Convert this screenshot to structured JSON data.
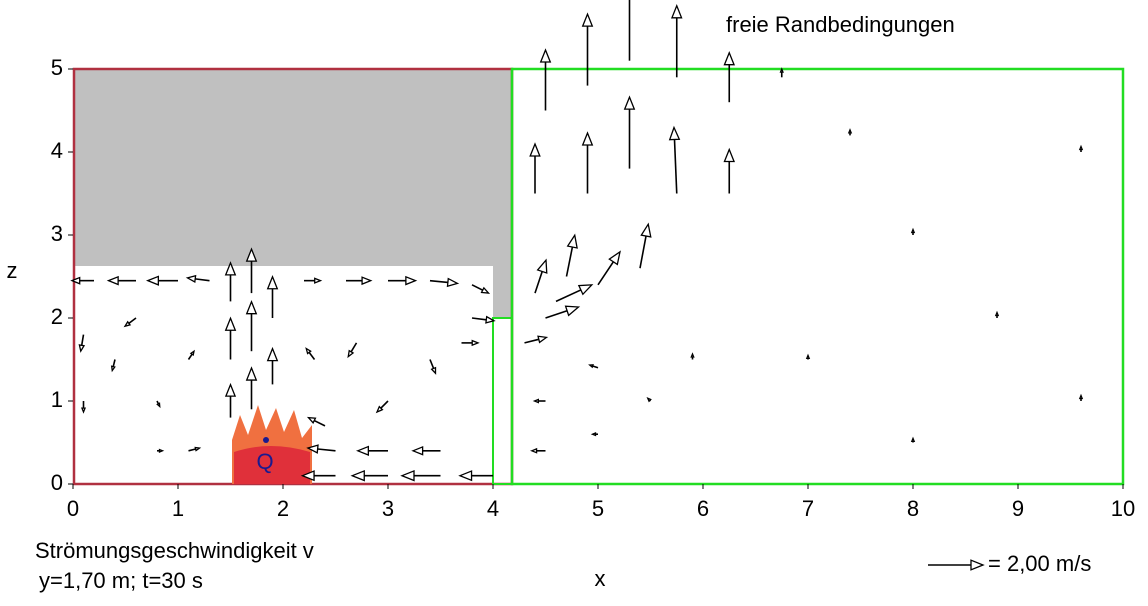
{
  "chart_data": {
    "type": "quiver",
    "annotations": {
      "top": "freie Randbedingungen",
      "caption": "Strömungsgeschwindigkeit v",
      "subcaption": "y=1,70 m; t=30 s",
      "source": "Q"
    },
    "x_label": "x",
    "y_label": "z",
    "xlim": [
      0,
      10
    ],
    "ylim": [
      0,
      5
    ],
    "xticks": [
      0,
      1,
      2,
      3,
      4,
      5,
      6,
      7,
      8,
      9,
      10
    ],
    "yticks": [
      0,
      1,
      2,
      3,
      4,
      5
    ],
    "key": {
      "label": "= 2,00 m/s",
      "value": 2
    },
    "color": "#000000",
    "vectors": {
      "x": [
        1.5,
        1.5,
        1.5,
        1.7,
        1.7,
        1.7,
        1.9,
        1.9,
        0.2,
        0.6,
        1.0,
        1.3,
        2.2,
        2.6,
        3.0,
        3.4,
        3.8,
        0.1,
        0.1,
        0.4,
        0.8,
        0.8,
        1.1,
        1.1,
        0.6,
        2.3,
        2.7,
        3.0,
        3.4,
        3.7,
        3.8,
        2.5,
        3.0,
        3.5,
        4.0,
        2.5,
        3.0,
        3.5,
        2.4,
        4.3,
        4.5,
        4.6,
        4.4,
        4.7,
        4.4,
        4.5,
        4.9,
        4.9,
        5.3,
        5.3,
        5.75,
        5.75,
        6.25,
        6.25,
        5.0,
        5.4,
        4.5,
        4.5,
        5.0,
        5.0,
        5.5,
        5.9,
        6.75,
        7.4,
        8.0,
        8.8,
        9.6,
        9.6,
        8.0,
        7.0
      ],
      "z": [
        0.8,
        1.5,
        2.2,
        0.9,
        1.6,
        2.3,
        1.2,
        2.0,
        2.45,
        2.45,
        2.45,
        2.45,
        2.45,
        2.45,
        2.45,
        2.45,
        2.4,
        1.8,
        1.0,
        1.5,
        1.0,
        0.4,
        0.4,
        1.5,
        2.0,
        1.5,
        1.7,
        1.0,
        1.5,
        1.7,
        2.0,
        0.1,
        0.1,
        0.1,
        0.1,
        0.4,
        0.4,
        0.4,
        0.7,
        1.7,
        2.0,
        2.2,
        2.3,
        2.5,
        3.5,
        4.5,
        3.5,
        4.8,
        3.8,
        5.1,
        3.5,
        4.9,
        3.5,
        4.6,
        2.4,
        2.6,
        0.4,
        1.0,
        0.6,
        1.4,
        1.0,
        1.5,
        4.9,
        4.2,
        3.0,
        2.0,
        4.0,
        1.0,
        0.5,
        1.5
      ],
      "u": [
        0,
        0,
        0,
        0,
        0,
        0,
        0,
        0,
        -0.8,
        -1.0,
        -1.1,
        -0.8,
        0.6,
        0.9,
        1.0,
        1.0,
        0.6,
        -0.1,
        0,
        -0.1,
        0.1,
        0.2,
        0.4,
        0.2,
        -0.4,
        -0.3,
        -0.3,
        -0.4,
        0.2,
        0.6,
        0.8,
        -1.2,
        -1.3,
        -1.4,
        -1.2,
        -1.0,
        -1.1,
        -1.0,
        -0.6,
        0.8,
        1.2,
        1.3,
        0.4,
        0.3,
        0,
        0,
        0,
        0,
        0,
        0,
        -0.1,
        0,
        0,
        0,
        0.8,
        0.3,
        -0.5,
        -0.4,
        -0.2,
        -0.3,
        -0.1,
        0,
        0,
        0,
        0,
        0,
        0,
        0,
        0,
        0
      ],
      "w": [
        1.2,
        1.5,
        1.4,
        1.5,
        1.8,
        1.6,
        1.3,
        1.5,
        0,
        0,
        0,
        0.1,
        0,
        0,
        0,
        -0.1,
        -0.3,
        -0.6,
        -0.4,
        -0.4,
        -0.2,
        0,
        0.1,
        0.3,
        -0.3,
        0.4,
        -0.5,
        -0.4,
        -0.5,
        0,
        -0.1,
        0,
        0,
        0,
        0,
        0.1,
        0,
        0,
        0.3,
        0.2,
        0.4,
        0.6,
        1.2,
        1.5,
        1.8,
        2.2,
        2.2,
        2.6,
        2.6,
        3.0,
        2.4,
        2.6,
        1.6,
        1.8,
        1.2,
        1.6,
        0,
        0,
        0,
        0.1,
        0.1,
        0.2,
        0.3,
        0.2,
        0.2,
        0.2,
        0.2,
        0.2,
        0.15,
        0.15
      ]
    }
  }
}
